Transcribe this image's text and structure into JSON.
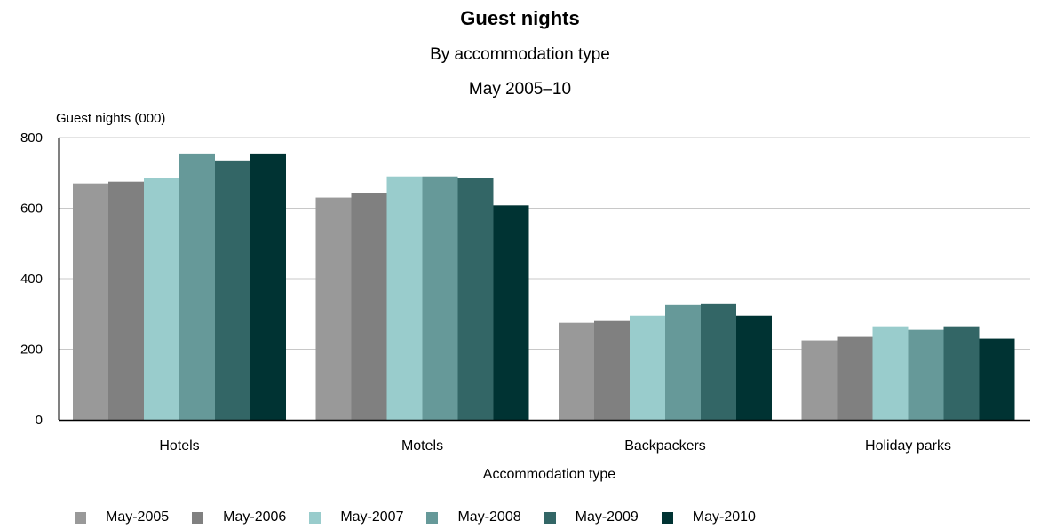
{
  "chart_data": {
    "type": "bar",
    "title": "Guest nights",
    "subtitle": "By accommodation type",
    "period": "May 2005–10",
    "ylabel": "Guest nights (000)",
    "xlabel": "Accommodation type",
    "categories": [
      "Hotels",
      "Motels",
      "Backpackers",
      "Holiday parks"
    ],
    "ylim": [
      0,
      800
    ],
    "yticks": [
      0,
      200,
      400,
      600,
      800
    ],
    "grid": true,
    "legend_position": "bottom",
    "series": [
      {
        "name": "May-2005",
        "color": "#999999",
        "values": [
          670,
          630,
          275,
          225
        ]
      },
      {
        "name": "May-2006",
        "color": "#808080",
        "values": [
          675,
          643,
          280,
          235
        ]
      },
      {
        "name": "May-2007",
        "color": "#99CCCC",
        "values": [
          685,
          690,
          295,
          265
        ]
      },
      {
        "name": "May-2008",
        "color": "#669999",
        "values": [
          755,
          690,
          325,
          255
        ]
      },
      {
        "name": "May-2009",
        "color": "#336666",
        "values": [
          735,
          685,
          330,
          265
        ]
      },
      {
        "name": "May-2010",
        "color": "#003333",
        "values": [
          755,
          608,
          295,
          230
        ]
      }
    ]
  }
}
